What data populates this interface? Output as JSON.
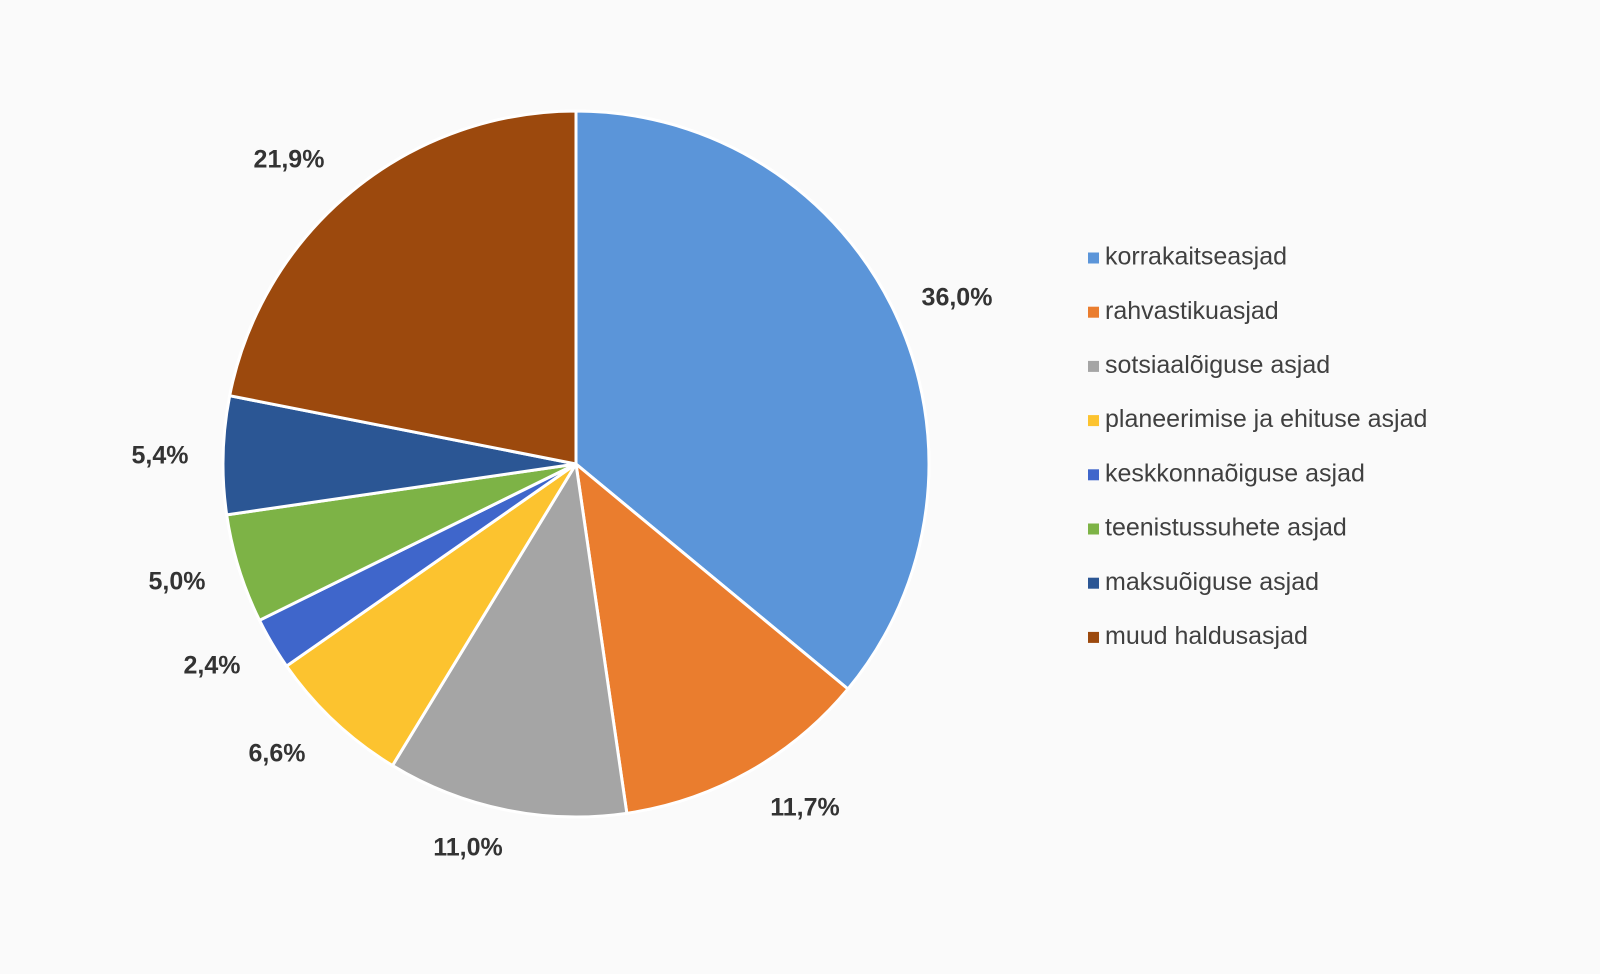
{
  "chart_data": {
    "type": "pie",
    "categories": [
      "korrakaitseasjad",
      "rahvastikuasjad",
      "sotsiaalõiguse asjad",
      "planeerimise ja ehituse asjad",
      "keskkonnaõiguse asjad",
      "teenistussuhete asjad",
      "maksuõiguse asjad",
      "muud haldusasjad"
    ],
    "values": [
      36.0,
      11.7,
      11.0,
      6.6,
      2.4,
      5.0,
      5.4,
      21.9
    ],
    "data_labels": [
      "36,0%",
      "11,7%",
      "11,0%",
      "6,6%",
      "2,4%",
      "5,0%",
      "5,4%",
      "21,9%"
    ],
    "colors": [
      "#5b95d9",
      "#ea7d2e",
      "#a5a5a5",
      "#fcc32f",
      "#3f66cb",
      "#7db346",
      "#2b5694",
      "#9c490d"
    ],
    "start_angle_deg": 0,
    "direction": "clockwise",
    "legend_position": "right"
  }
}
